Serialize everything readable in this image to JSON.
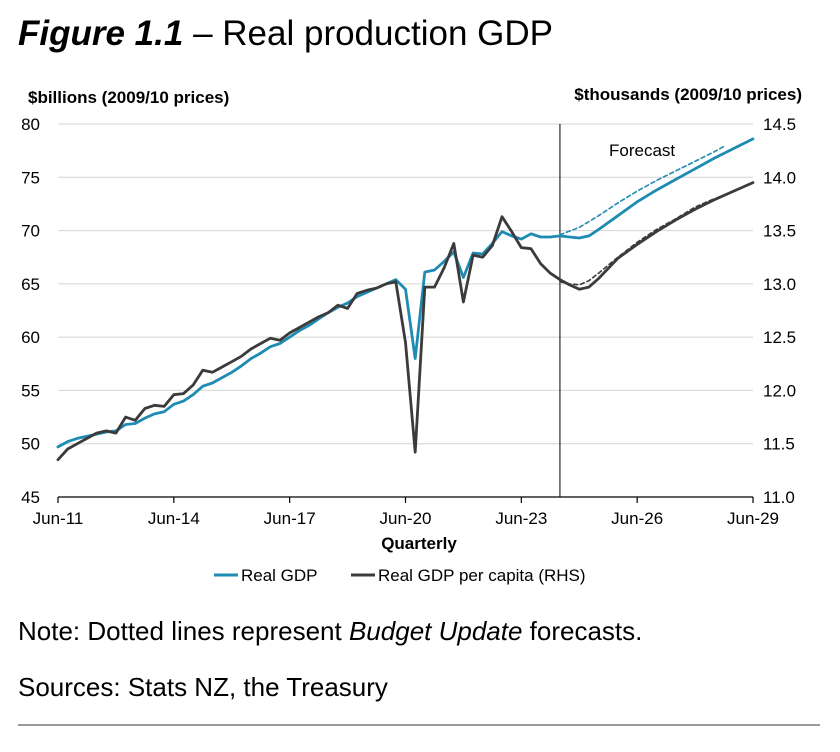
{
  "title": {
    "figure_label": "Figure 1.1",
    "separator": "–",
    "text": "Real production GDP"
  },
  "note": {
    "prefix": "Note: Dotted lines represent ",
    "italic": "Budget Update",
    "suffix": " forecasts."
  },
  "sources": "Sources: Stats NZ, the Treasury",
  "colors": {
    "real_gdp": "#1e8bb2",
    "per_capita": "#3b3b3b",
    "axis": "#000000"
  },
  "chart_data": {
    "type": "line",
    "ylabel_left": "$billions (2009/10 prices)",
    "ylabel_right": "$thousands (2009/10 prices)",
    "xlabel": "Quarterly",
    "ylim_left": [
      45,
      80
    ],
    "ylim_right": [
      11.0,
      14.5
    ],
    "yticks_left": [
      "80",
      "75",
      "70",
      "65",
      "60",
      "55",
      "50",
      "45"
    ],
    "yticks_right": [
      "14.5",
      "14.0",
      "13.5",
      "13.0",
      "12.5",
      "12.0",
      "11.5",
      "11.0"
    ],
    "x_range": [
      2011.0,
      2029.0
    ],
    "x_tick_labels": [
      {
        "x": 2011.0,
        "label": "Jun-11"
      },
      {
        "x": 2014.0,
        "label": "Jun-14"
      },
      {
        "x": 2017.0,
        "label": "Jun-17"
      },
      {
        "x": 2020.0,
        "label": "Jun-20"
      },
      {
        "x": 2023.0,
        "label": "Jun-23"
      },
      {
        "x": 2026.0,
        "label": "Jun-26"
      },
      {
        "x": 2029.0,
        "label": "Jun-29"
      }
    ],
    "forecast_start_x": 2024.0,
    "forecast_label": "Forecast",
    "legend": [
      "Real GDP",
      "Real GDP per capita (RHS)"
    ],
    "legend_position": "bottom",
    "series": [
      {
        "name": "Real GDP",
        "axis": "left",
        "style": "solid",
        "points": [
          [
            2011.0,
            49.7
          ],
          [
            2011.25,
            50.2
          ],
          [
            2011.5,
            50.5
          ],
          [
            2011.75,
            50.7
          ],
          [
            2012.0,
            50.9
          ],
          [
            2012.25,
            51.1
          ],
          [
            2012.5,
            51.2
          ],
          [
            2012.75,
            51.8
          ],
          [
            2013.0,
            51.9
          ],
          [
            2013.25,
            52.4
          ],
          [
            2013.5,
            52.8
          ],
          [
            2013.75,
            53.0
          ],
          [
            2014.0,
            53.7
          ],
          [
            2014.25,
            54.0
          ],
          [
            2014.5,
            54.6
          ],
          [
            2014.75,
            55.4
          ],
          [
            2015.0,
            55.7
          ],
          [
            2015.25,
            56.2
          ],
          [
            2015.5,
            56.7
          ],
          [
            2015.75,
            57.3
          ],
          [
            2016.0,
            58.0
          ],
          [
            2016.25,
            58.5
          ],
          [
            2016.5,
            59.1
          ],
          [
            2016.75,
            59.4
          ],
          [
            2017.0,
            60.0
          ],
          [
            2017.25,
            60.6
          ],
          [
            2017.5,
            61.1
          ],
          [
            2017.75,
            61.7
          ],
          [
            2018.0,
            62.3
          ],
          [
            2018.25,
            62.8
          ],
          [
            2018.5,
            63.2
          ],
          [
            2018.75,
            63.8
          ],
          [
            2019.0,
            64.2
          ],
          [
            2019.25,
            64.6
          ],
          [
            2019.5,
            65.0
          ],
          [
            2019.75,
            65.4
          ],
          [
            2020.0,
            64.5
          ],
          [
            2020.25,
            58.0
          ],
          [
            2020.5,
            66.1
          ],
          [
            2020.75,
            66.3
          ],
          [
            2021.0,
            67.1
          ],
          [
            2021.25,
            68.0
          ],
          [
            2021.5,
            65.6
          ],
          [
            2021.75,
            67.9
          ],
          [
            2022.0,
            67.8
          ],
          [
            2022.25,
            68.8
          ],
          [
            2022.5,
            69.9
          ],
          [
            2022.75,
            69.5
          ],
          [
            2023.0,
            69.2
          ],
          [
            2023.25,
            69.7
          ],
          [
            2023.5,
            69.4
          ],
          [
            2023.75,
            69.4
          ],
          [
            2024.0,
            69.5
          ],
          [
            2024.25,
            69.4
          ],
          [
            2024.5,
            69.3
          ],
          [
            2024.75,
            69.5
          ],
          [
            2025.0,
            70.1
          ],
          [
            2025.5,
            71.4
          ],
          [
            2026.0,
            72.7
          ],
          [
            2026.5,
            73.8
          ],
          [
            2027.0,
            74.8
          ],
          [
            2027.5,
            75.8
          ],
          [
            2028.0,
            76.8
          ],
          [
            2028.5,
            77.7
          ],
          [
            2029.0,
            78.6
          ]
        ]
      },
      {
        "name": "Real GDP",
        "axis": "left",
        "style": "dotted",
        "points": [
          [
            2024.0,
            69.6
          ],
          [
            2024.5,
            70.3
          ],
          [
            2025.0,
            71.4
          ],
          [
            2025.5,
            72.6
          ],
          [
            2026.0,
            73.7
          ],
          [
            2026.5,
            74.7
          ],
          [
            2027.0,
            75.6
          ],
          [
            2027.5,
            76.5
          ],
          [
            2028.0,
            77.4
          ],
          [
            2028.25,
            77.9
          ]
        ]
      },
      {
        "name": "Real GDP per capita (RHS)",
        "axis": "right",
        "style": "solid",
        "points": [
          [
            2011.0,
            11.35
          ],
          [
            2011.25,
            11.45
          ],
          [
            2011.5,
            11.5
          ],
          [
            2011.75,
            11.55
          ],
          [
            2012.0,
            11.6
          ],
          [
            2012.25,
            11.62
          ],
          [
            2012.5,
            11.6
          ],
          [
            2012.75,
            11.75
          ],
          [
            2013.0,
            11.72
          ],
          [
            2013.25,
            11.83
          ],
          [
            2013.5,
            11.86
          ],
          [
            2013.75,
            11.85
          ],
          [
            2014.0,
            11.96
          ],
          [
            2014.25,
            11.97
          ],
          [
            2014.5,
            12.05
          ],
          [
            2014.75,
            12.19
          ],
          [
            2015.0,
            12.17
          ],
          [
            2015.25,
            12.22
          ],
          [
            2015.5,
            12.27
          ],
          [
            2015.75,
            12.32
          ],
          [
            2016.0,
            12.39
          ],
          [
            2016.25,
            12.44
          ],
          [
            2016.5,
            12.49
          ],
          [
            2016.75,
            12.47
          ],
          [
            2017.0,
            12.54
          ],
          [
            2017.25,
            12.59
          ],
          [
            2017.5,
            12.64
          ],
          [
            2017.75,
            12.69
          ],
          [
            2018.0,
            12.73
          ],
          [
            2018.25,
            12.8
          ],
          [
            2018.5,
            12.77
          ],
          [
            2018.75,
            12.91
          ],
          [
            2019.0,
            12.94
          ],
          [
            2019.25,
            12.96
          ],
          [
            2019.5,
            13.0
          ],
          [
            2019.75,
            13.02
          ],
          [
            2020.0,
            12.45
          ],
          [
            2020.25,
            11.42
          ],
          [
            2020.5,
            12.97
          ],
          [
            2020.75,
            12.97
          ],
          [
            2021.0,
            13.15
          ],
          [
            2021.25,
            13.38
          ],
          [
            2021.5,
            12.83
          ],
          [
            2021.75,
            13.27
          ],
          [
            2022.0,
            13.25
          ],
          [
            2022.25,
            13.36
          ],
          [
            2022.5,
            13.63
          ],
          [
            2022.75,
            13.49
          ],
          [
            2023.0,
            13.34
          ],
          [
            2023.25,
            13.33
          ],
          [
            2023.5,
            13.19
          ],
          [
            2023.75,
            13.1
          ],
          [
            2024.0,
            13.04
          ],
          [
            2024.25,
            12.99
          ],
          [
            2024.5,
            12.95
          ],
          [
            2024.75,
            12.97
          ],
          [
            2025.0,
            13.05
          ],
          [
            2025.5,
            13.24
          ],
          [
            2026.0,
            13.37
          ],
          [
            2026.5,
            13.49
          ],
          [
            2027.0,
            13.6
          ],
          [
            2027.5,
            13.7
          ],
          [
            2028.0,
            13.79
          ],
          [
            2028.5,
            13.87
          ],
          [
            2029.0,
            13.95
          ]
        ]
      },
      {
        "name": "Real GDP per capita (RHS)",
        "axis": "right",
        "style": "dotted",
        "points": [
          [
            2024.0,
            13.02
          ],
          [
            2024.25,
            13.0
          ],
          [
            2024.5,
            12.99
          ],
          [
            2024.75,
            13.03
          ],
          [
            2025.0,
            13.1
          ],
          [
            2025.5,
            13.25
          ],
          [
            2026.0,
            13.39
          ],
          [
            2026.5,
            13.51
          ],
          [
            2027.0,
            13.61
          ],
          [
            2027.5,
            13.72
          ],
          [
            2028.0,
            13.8
          ]
        ]
      }
    ]
  }
}
